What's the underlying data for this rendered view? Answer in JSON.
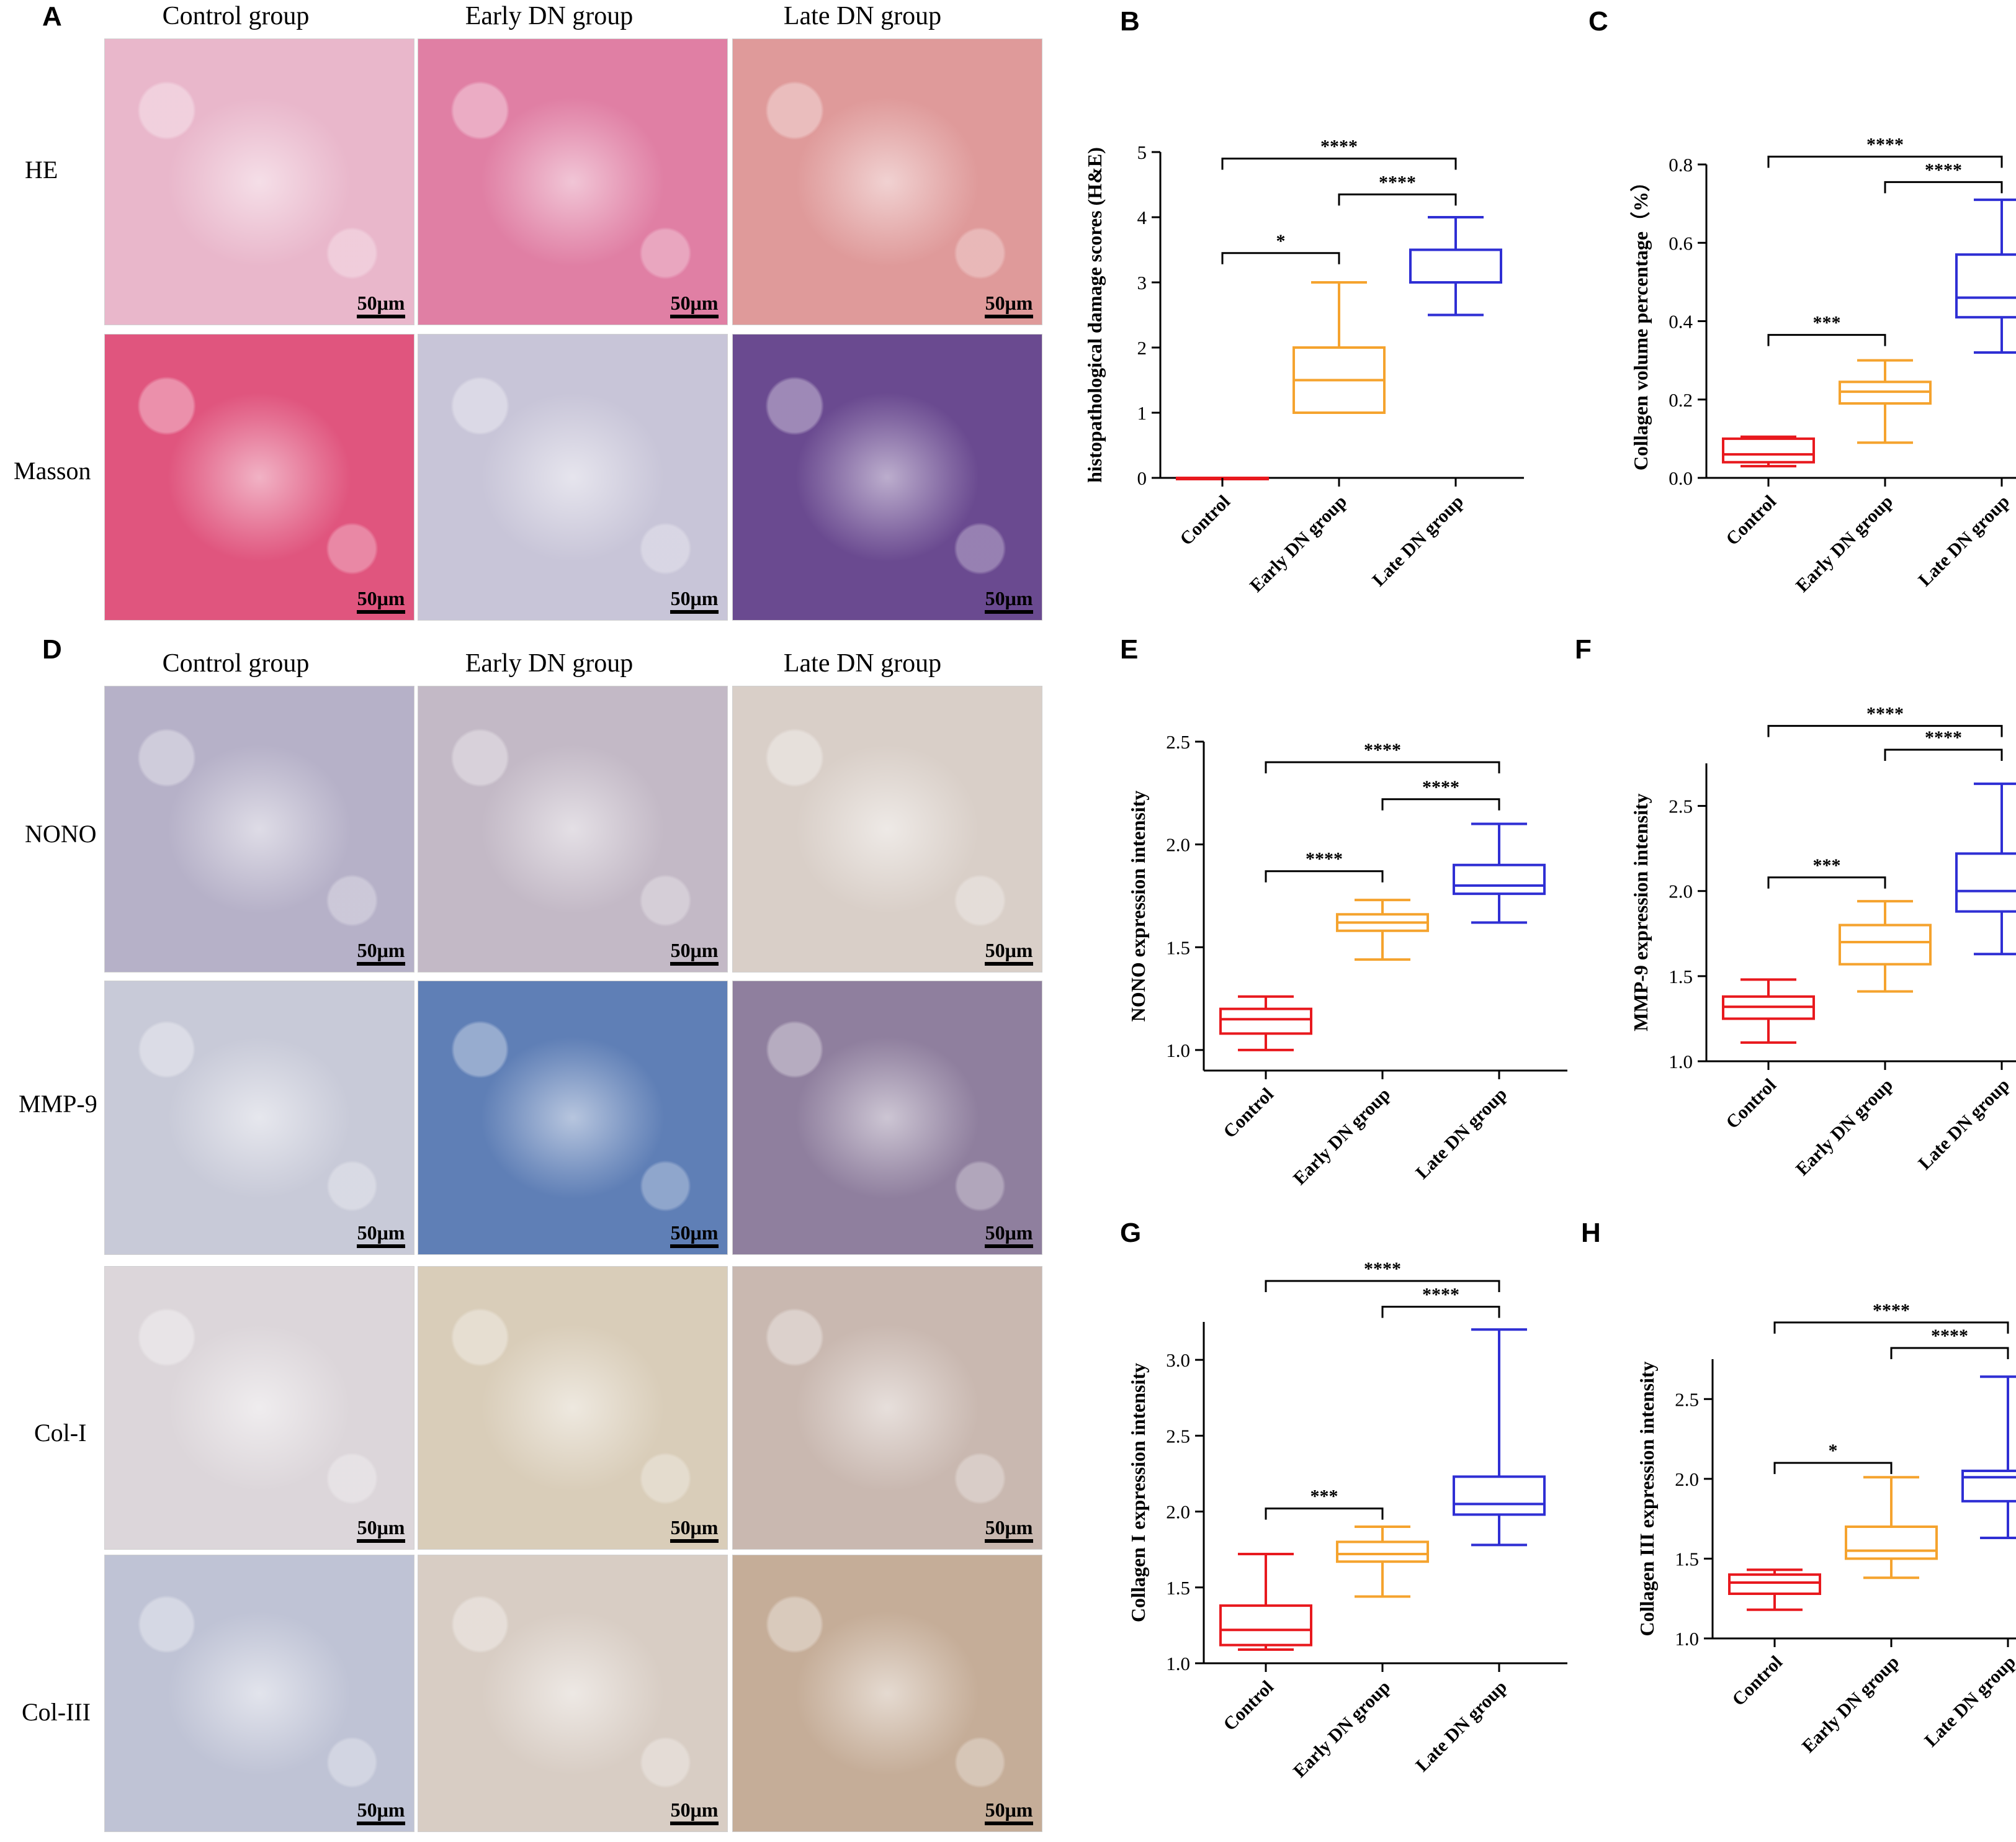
{
  "panels": {
    "A": "A",
    "B": "B",
    "C": "C",
    "D": "D",
    "E": "E",
    "F": "F",
    "G": "G",
    "H": "H"
  },
  "panel_A": {
    "columns": [
      "Control group",
      "Early DN group",
      "Late DN group"
    ],
    "rows": [
      "HE",
      "Masson"
    ],
    "scale_label": "50μm",
    "colors": {
      "HE": [
        "#e9b7cb",
        "#e07fa4",
        "#df9a9a"
      ],
      "Masson": [
        "#e0557e",
        "#c8c5d8",
        "#6a4a90"
      ]
    }
  },
  "panel_D": {
    "columns": [
      "Control group",
      "Early DN group",
      "Late DN group"
    ],
    "rows": [
      "NONO",
      "MMP-9",
      "Col-I",
      "Col-III"
    ],
    "scale_label": "50μm",
    "colors": {
      "NONO": [
        "#b6b1c8",
        "#c3b9c6",
        "#d9cfc8"
      ],
      "MMP-9": [
        "#c8cad8",
        "#5f7fb6",
        "#8f7f9e"
      ],
      "Col-I": [
        "#dcd6da",
        "#d9cdb9",
        "#c9b8b0"
      ],
      "Col-III": [
        "#bfc3d5",
        "#d8cdc4",
        "#c5ad98"
      ]
    }
  },
  "series_colors": [
    "#e8191e",
    "#f5a32e",
    "#2f2fd4"
  ],
  "chart_data": [
    {
      "panel": "B",
      "type": "box",
      "categories": [
        "Control",
        "Early DN group",
        "Late DN group"
      ],
      "ylabel": "histopathological damage scores (H&E)",
      "ylim": [
        0,
        5
      ],
      "yticks": [
        "0",
        "1",
        "2",
        "3",
        "4",
        "5"
      ],
      "boxes": [
        {
          "min": 0,
          "q1": 0,
          "median": 0,
          "q3": 0,
          "max": 0
        },
        {
          "min": 1,
          "q1": 1,
          "median": 1.5,
          "q3": 2,
          "max": 3
        },
        {
          "min": 2.5,
          "q1": 3,
          "median": 3.5,
          "q3": 3.5,
          "max": 4
        }
      ],
      "significance": [
        {
          "from": 0,
          "to": 2,
          "label": "****",
          "y": 4.9
        },
        {
          "from": 1,
          "to": 2,
          "label": "****",
          "y": 4.35
        },
        {
          "from": 0,
          "to": 1,
          "label": "*",
          "y": 3.45
        }
      ]
    },
    {
      "panel": "C",
      "type": "box",
      "categories": [
        "Control",
        "Early DN group",
        "Late DN group"
      ],
      "ylabel": "Collagen volume percentage（%）",
      "ylim": [
        0,
        0.8
      ],
      "yticks": [
        "0.0",
        "0.2",
        "0.4",
        "0.6",
        "0.8"
      ],
      "boxes": [
        {
          "min": 0.03,
          "q1": 0.04,
          "median": 0.06,
          "q3": 0.1,
          "max": 0.105
        },
        {
          "min": 0.09,
          "q1": 0.19,
          "median": 0.22,
          "q3": 0.245,
          "max": 0.3
        },
        {
          "min": 0.32,
          "q1": 0.41,
          "median": 0.46,
          "q3": 0.57,
          "max": 0.71
        }
      ],
      "significance": [
        {
          "from": 0,
          "to": 2,
          "label": "****",
          "y": 0.82
        },
        {
          "from": 1,
          "to": 2,
          "label": "****",
          "y": 0.755
        },
        {
          "from": 0,
          "to": 1,
          "label": "***",
          "y": 0.365
        }
      ]
    },
    {
      "panel": "E",
      "type": "box",
      "categories": [
        "Control",
        "Early DN group",
        "Late DN group"
      ],
      "ylabel": "NONO expression intensity",
      "ylim": [
        0.9,
        2.5
      ],
      "yticks_values": [
        1.0,
        1.5,
        2.0,
        2.5
      ],
      "yticks": [
        "1.0",
        "1.5",
        "2.0",
        "2.5"
      ],
      "boxes": [
        {
          "min": 1.0,
          "q1": 1.08,
          "median": 1.15,
          "q3": 1.2,
          "max": 1.26
        },
        {
          "min": 1.44,
          "q1": 1.58,
          "median": 1.62,
          "q3": 1.66,
          "max": 1.73
        },
        {
          "min": 1.62,
          "q1": 1.76,
          "median": 1.8,
          "q3": 1.9,
          "max": 2.1
        }
      ],
      "significance": [
        {
          "from": 0,
          "to": 2,
          "label": "****",
          "y": 2.4
        },
        {
          "from": 1,
          "to": 2,
          "label": "****",
          "y": 2.22
        },
        {
          "from": 0,
          "to": 1,
          "label": "****",
          "y": 1.87
        }
      ]
    },
    {
      "panel": "F",
      "type": "box",
      "categories": [
        "Control",
        "Early DN group",
        "Late DN group"
      ],
      "ylabel": "MMP-9 expression intensity",
      "ylim": [
        1.0,
        2.75
      ],
      "yticks_values": [
        1.0,
        1.5,
        2.0,
        2.5
      ],
      "yticks": [
        "1.0",
        "1.5",
        "2.0",
        "2.5"
      ],
      "boxes": [
        {
          "min": 1.11,
          "q1": 1.25,
          "median": 1.32,
          "q3": 1.38,
          "max": 1.48
        },
        {
          "min": 1.41,
          "q1": 1.57,
          "median": 1.7,
          "q3": 1.8,
          "max": 1.94
        },
        {
          "min": 1.63,
          "q1": 1.88,
          "median": 2.0,
          "q3": 2.22,
          "max": 2.63
        }
      ],
      "significance": [
        {
          "from": 0,
          "to": 2,
          "label": "****",
          "y": 2.97
        },
        {
          "from": 1,
          "to": 2,
          "label": "****",
          "y": 2.83
        },
        {
          "from": 0,
          "to": 1,
          "label": "***",
          "y": 2.08
        }
      ]
    },
    {
      "panel": "G",
      "type": "box",
      "categories": [
        "Control",
        "Early DN group",
        "Late DN group"
      ],
      "ylabel": "Collagen I expression intensity",
      "ylim": [
        1.0,
        3.25
      ],
      "yticks_values": [
        1.0,
        1.5,
        2.0,
        2.5,
        3.0
      ],
      "yticks": [
        "1.0",
        "1.5",
        "2.0",
        "2.5",
        "3.0"
      ],
      "boxes": [
        {
          "min": 1.09,
          "q1": 1.12,
          "median": 1.22,
          "q3": 1.38,
          "max": 1.72
        },
        {
          "min": 1.44,
          "q1": 1.67,
          "median": 1.72,
          "q3": 1.8,
          "max": 1.9
        },
        {
          "min": 1.78,
          "q1": 1.98,
          "median": 2.05,
          "q3": 2.23,
          "max": 3.2
        }
      ],
      "significance": [
        {
          "from": 0,
          "to": 2,
          "label": "****",
          "y": 3.52
        },
        {
          "from": 1,
          "to": 2,
          "label": "****",
          "y": 3.35
        },
        {
          "from": 0,
          "to": 1,
          "label": "***",
          "y": 2.02
        }
      ]
    },
    {
      "panel": "H",
      "type": "box",
      "categories": [
        "Control",
        "Early DN group",
        "Late DN group"
      ],
      "ylabel": "Collagen III expression intensity",
      "ylim": [
        1.0,
        2.75
      ],
      "yticks_values": [
        1.0,
        1.5,
        2.0,
        2.5
      ],
      "yticks": [
        "1.0",
        "1.5",
        "2.0",
        "2.5"
      ],
      "boxes": [
        {
          "min": 1.18,
          "q1": 1.28,
          "median": 1.35,
          "q3": 1.4,
          "max": 1.43
        },
        {
          "min": 1.38,
          "q1": 1.5,
          "median": 1.55,
          "q3": 1.7,
          "max": 2.01
        },
        {
          "min": 1.63,
          "q1": 1.86,
          "median": 2.01,
          "q3": 2.05,
          "max": 2.64
        }
      ],
      "significance": [
        {
          "from": 0,
          "to": 2,
          "label": "****",
          "y": 2.98
        },
        {
          "from": 1,
          "to": 2,
          "label": "****",
          "y": 2.82
        },
        {
          "from": 0,
          "to": 1,
          "label": "*",
          "y": 2.1
        }
      ]
    }
  ]
}
